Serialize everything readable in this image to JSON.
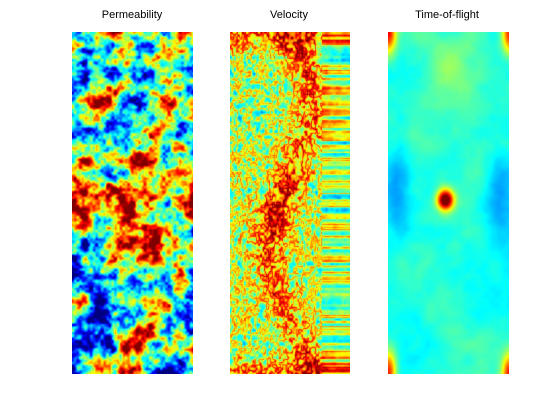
{
  "figure": {
    "panels": [
      {
        "title": "Permeability",
        "kind": "permeability"
      },
      {
        "title": "Velocity",
        "kind": "velocity"
      },
      {
        "title": "Time-of-flight",
        "kind": "time-of-flight"
      }
    ]
  },
  "colormap": "jet",
  "colors": {
    "background": "#ffffff",
    "title_text": "#000000"
  }
}
